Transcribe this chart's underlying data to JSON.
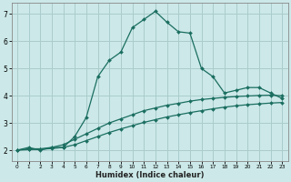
{
  "xlabel": "Humidex (Indice chaleur)",
  "background_color": "#cce8e8",
  "grid_color": "#aacccc",
  "line_color": "#1a6e60",
  "xlim": [
    -0.5,
    23.5
  ],
  "ylim": [
    1.6,
    7.4
  ],
  "yticks": [
    2,
    3,
    4,
    5,
    6,
    7
  ],
  "xticks": [
    0,
    1,
    2,
    3,
    4,
    5,
    6,
    7,
    8,
    9,
    10,
    11,
    12,
    13,
    14,
    15,
    16,
    17,
    18,
    19,
    20,
    21,
    22,
    23
  ],
  "curve1_x": [
    0,
    1,
    2,
    3,
    4,
    5,
    6,
    7,
    8,
    9,
    10,
    11,
    12,
    13,
    14,
    15,
    16,
    17,
    18,
    19,
    20,
    21,
    22,
    23
  ],
  "curve1_y": [
    2.0,
    2.1,
    2.0,
    2.1,
    2.1,
    2.5,
    3.2,
    4.7,
    5.3,
    5.6,
    6.5,
    6.8,
    7.1,
    6.7,
    6.35,
    6.3,
    5.0,
    4.7,
    4.1,
    4.2,
    4.3,
    4.3,
    4.1,
    3.9
  ],
  "curve2_x": [
    0,
    1,
    2,
    3,
    4,
    5,
    6,
    7,
    8,
    9,
    10,
    11,
    12,
    13,
    14,
    15,
    16,
    17,
    18,
    19,
    20,
    21,
    22,
    23
  ],
  "curve2_y": [
    2.0,
    2.05,
    2.05,
    2.1,
    2.2,
    2.4,
    2.6,
    2.8,
    3.0,
    3.15,
    3.3,
    3.45,
    3.55,
    3.65,
    3.72,
    3.8,
    3.86,
    3.9,
    3.94,
    3.97,
    3.99,
    4.01,
    4.02,
    4.0
  ],
  "curve3_x": [
    0,
    1,
    2,
    3,
    4,
    5,
    6,
    7,
    8,
    9,
    10,
    11,
    12,
    13,
    14,
    15,
    16,
    17,
    18,
    19,
    20,
    21,
    22,
    23
  ],
  "curve3_y": [
    2.0,
    2.02,
    2.03,
    2.06,
    2.1,
    2.2,
    2.35,
    2.5,
    2.65,
    2.78,
    2.9,
    3.02,
    3.12,
    3.22,
    3.3,
    3.38,
    3.45,
    3.52,
    3.58,
    3.63,
    3.67,
    3.7,
    3.73,
    3.75
  ]
}
